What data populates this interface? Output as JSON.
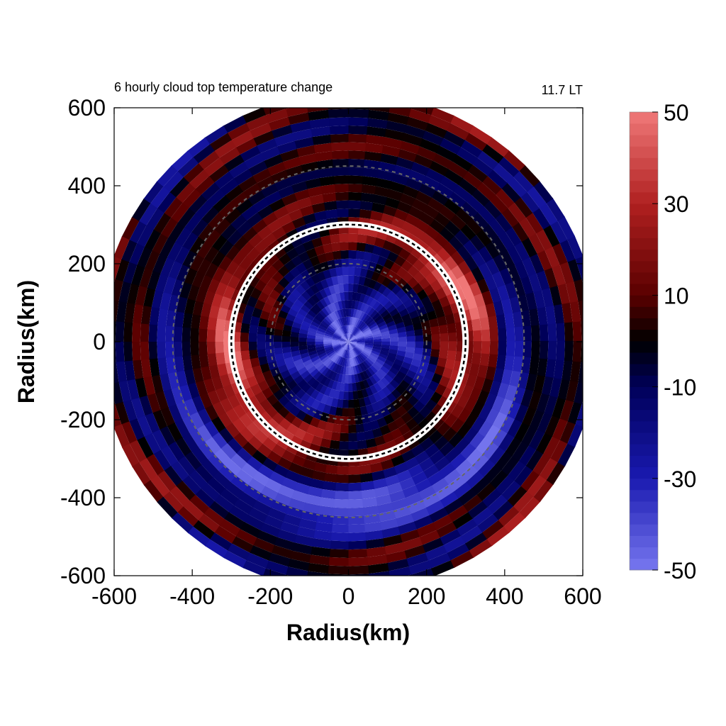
{
  "chart_data": {
    "type": "heatmap",
    "title": "6 hourly cloud top temperature change",
    "time_label": "11.7 LT",
    "xlabel": "Radius(km)",
    "ylabel": "Radius(km)",
    "xlim": [
      -600,
      600
    ],
    "ylim": [
      -600,
      600
    ],
    "x_ticks": [
      "-600",
      "-400",
      "-200",
      "0",
      "200",
      "400",
      "600"
    ],
    "y_ticks": [
      "-600",
      "-400",
      "-200",
      "0",
      "200",
      "400",
      "600"
    ],
    "grid": false,
    "colorbar": {
      "range": [
        -50,
        50
      ],
      "tick_labels": [
        "50",
        "30",
        "10",
        "-10",
        "-30",
        "-50"
      ],
      "colors": {
        "max": "#f07878",
        "mid_high": "#8b0000",
        "zero": "#000000",
        "mid_low": "#00007a",
        "min": "#7878f0"
      }
    },
    "overlays": {
      "reference_circle_radius_km": 300,
      "dashed_circle_radii_km": [
        200,
        450
      ]
    },
    "field_features": [
      {
        "feature": "positive ring (warming)",
        "radius_km": 320,
        "value": 42
      },
      {
        "feature": "negative band (cooling)",
        "radius_km": 430,
        "value": -48
      },
      {
        "feature": "core cooling",
        "radius_km": 30,
        "value": -45
      }
    ]
  }
}
